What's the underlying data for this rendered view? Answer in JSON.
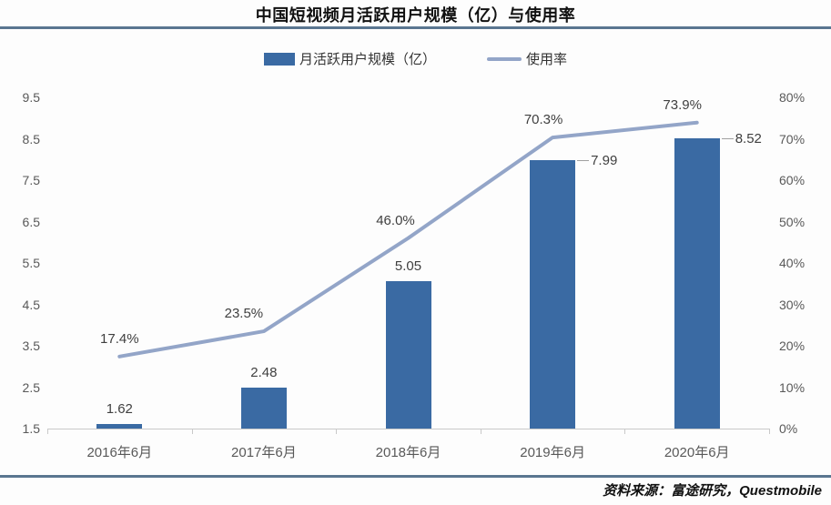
{
  "title": "中国短视频月活跃用户规模（亿）与使用率",
  "legend": {
    "bar_label": "月活跃用户规模（亿）",
    "line_label": "使用率"
  },
  "source": "资料来源：富途研究，Questmobile",
  "colors": {
    "bar": "#3A6AA3",
    "line": "#93A5C8",
    "rule": "#5A7690",
    "axis_text": "#595959"
  },
  "chart_data": {
    "type": "bar+line",
    "title": "中国短视频月活跃用户规模（亿）与使用率",
    "categories": [
      "2016年6月",
      "2017年6月",
      "2018年6月",
      "2019年6月",
      "2020年6月"
    ],
    "series": [
      {
        "name": "月活跃用户规模（亿）",
        "type": "bar",
        "axis": "left",
        "values": [
          1.62,
          2.48,
          5.05,
          7.99,
          8.52
        ],
        "labels": [
          "1.62",
          "2.48",
          "5.05",
          "7.99",
          "8.52"
        ],
        "label_placement": [
          "top",
          "top",
          "top",
          "right",
          "right"
        ]
      },
      {
        "name": "使用率",
        "type": "line",
        "axis": "right",
        "values": [
          17.4,
          23.5,
          46.0,
          70.3,
          73.9
        ],
        "labels": [
          "17.4%",
          "23.5%",
          "46.0%",
          "70.3%",
          "73.9%"
        ]
      }
    ],
    "left_axis": {
      "min": 1.5,
      "max": 9.5,
      "ticks": [
        "9.5",
        "8.5",
        "7.5",
        "6.5",
        "5.5",
        "4.5",
        "3.5",
        "2.5",
        "1.5"
      ]
    },
    "right_axis": {
      "min": 0,
      "max": 80,
      "ticks": [
        "80%",
        "70%",
        "60%",
        "50%",
        "40%",
        "30%",
        "20%",
        "10%",
        "0%"
      ]
    },
    "grid": false,
    "legend_position": "top"
  }
}
